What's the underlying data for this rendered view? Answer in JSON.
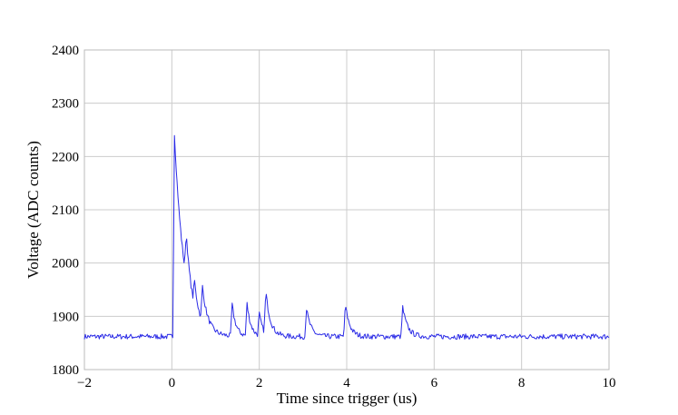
{
  "chart_data": {
    "type": "line",
    "xlabel": "Time since trigger (us)",
    "ylabel": "Voltage (ADC counts)",
    "xlim": [
      -2,
      10
    ],
    "ylim": [
      1800,
      2400
    ],
    "xticks": [
      -2,
      0,
      2,
      4,
      6,
      8,
      10
    ],
    "yticks": [
      1800,
      1900,
      2000,
      2100,
      2200,
      2300,
      2400
    ],
    "xtick_labels": [
      "−2",
      "0",
      "2",
      "4",
      "6",
      "8",
      "10"
    ],
    "ytick_labels": [
      "1800",
      "1900",
      "2000",
      "2100",
      "2200",
      "2300",
      "2400"
    ],
    "grid": true,
    "color": "#2a2ae6",
    "baseline": 1862,
    "noise_amplitude": 5,
    "sample_step": 0.02,
    "series": [
      {
        "pulses": [
          {
            "t": 0.06,
            "amp": 380,
            "tau": 0.22
          },
          {
            "t": 0.33,
            "amp": 85,
            "tau": 0.1
          },
          {
            "t": 0.52,
            "amp": 45,
            "tau": 0.09
          },
          {
            "t": 0.7,
            "amp": 65,
            "tau": 0.12
          },
          {
            "t": 1.38,
            "amp": 58,
            "tau": 0.09
          },
          {
            "t": 1.72,
            "amp": 60,
            "tau": 0.09
          },
          {
            "t": 2.0,
            "amp": 40,
            "tau": 0.08
          },
          {
            "t": 2.15,
            "amp": 78,
            "tau": 0.11
          },
          {
            "t": 3.08,
            "amp": 52,
            "tau": 0.1
          },
          {
            "t": 3.97,
            "amp": 60,
            "tau": 0.1
          },
          {
            "t": 5.28,
            "amp": 55,
            "tau": 0.11
          }
        ]
      }
    ]
  }
}
